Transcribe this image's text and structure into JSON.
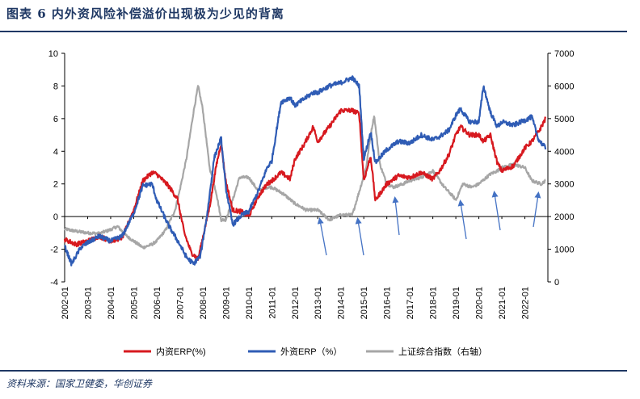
{
  "title": "图表 6   内外资风险补偿溢价出现极为少见的背离",
  "source": "资料来源：国家卫健委，华创证券",
  "chart_data": {
    "type": "line",
    "x_ticks": [
      "2002-01",
      "2003-01",
      "2004-01",
      "2005-01",
      "2006-01",
      "2007-01",
      "2008-01",
      "2009-01",
      "2010-01",
      "2011-01",
      "2012-01",
      "2013-01",
      "2014-01",
      "2015-01",
      "2016-01",
      "2017-01",
      "2018-01",
      "2019-01",
      "2020-01",
      "2021-01",
      "2022-01"
    ],
    "ylim_left": [
      -4,
      10
    ],
    "yticks_left": [
      "-4",
      "-2",
      "0",
      "2",
      "4",
      "6",
      "8",
      "10"
    ],
    "ylim_right": [
      0,
      7000
    ],
    "yticks_right": [
      "0",
      "1000",
      "2000",
      "3000",
      "4000",
      "5000",
      "6000",
      "7000"
    ],
    "series": [
      {
        "name": "内资ERP(%)",
        "axis": "left",
        "color": "#d7191f",
        "x": [
          2002.0,
          2002.5,
          2003.0,
          2003.5,
          2004.0,
          2004.5,
          2005.0,
          2005.4,
          2005.8,
          2006.0,
          2006.5,
          2006.9,
          2007.2,
          2007.5,
          2007.8,
          2008.0,
          2008.3,
          2008.6,
          2008.8,
          2009.0,
          2009.3,
          2009.7,
          2010.0,
          2010.4,
          2010.8,
          2011.0,
          2011.4,
          2011.8,
          2012.0,
          2012.4,
          2012.8,
          2013.0,
          2013.5,
          2014.0,
          2014.5,
          2014.8,
          2015.0,
          2015.3,
          2015.5,
          2016.0,
          2016.5,
          2017.0,
          2017.5,
          2018.0,
          2018.3,
          2018.7,
          2019.0,
          2019.2,
          2019.6,
          2020.0,
          2020.2,
          2020.5,
          2020.8,
          2021.0,
          2021.5,
          2022.0,
          2022.3,
          2022.6,
          2022.9
        ],
        "values": [
          -1.4,
          -1.7,
          -1.5,
          -1.2,
          -1.5,
          -1.3,
          0.4,
          2.2,
          2.7,
          2.6,
          1.9,
          1.1,
          -1.0,
          -2.2,
          -2.6,
          -1.3,
          0.6,
          3.2,
          4.5,
          2.2,
          0.4,
          0.3,
          0.0,
          1.2,
          2.0,
          2.2,
          2.7,
          2.3,
          3.5,
          4.4,
          5.5,
          4.6,
          5.5,
          6.5,
          6.5,
          6.3,
          2.2,
          3.7,
          1.0,
          2.0,
          2.5,
          2.4,
          2.7,
          2.3,
          2.8,
          3.8,
          5.0,
          5.5,
          5.0,
          5.0,
          4.6,
          5.0,
          3.3,
          2.8,
          3.1,
          4.2,
          4.6,
          5.2,
          6.0
        ]
      },
      {
        "name": "外资ERP（%）",
        "axis": "left",
        "color": "#2f5cb5",
        "x": [
          2002.0,
          2002.3,
          2002.7,
          2003.0,
          2003.5,
          2004.0,
          2004.5,
          2005.0,
          2005.4,
          2005.8,
          2006.0,
          2006.5,
          2007.0,
          2007.3,
          2007.6,
          2007.9,
          2008.2,
          2008.5,
          2008.8,
          2009.0,
          2009.3,
          2009.7,
          2010.0,
          2010.4,
          2010.8,
          2011.0,
          2011.4,
          2011.8,
          2012.0,
          2012.4,
          2012.8,
          2013.0,
          2013.5,
          2014.0,
          2014.5,
          2014.8,
          2015.0,
          2015.3,
          2015.5,
          2016.0,
          2016.5,
          2017.0,
          2017.5,
          2018.0,
          2018.3,
          2018.7,
          2019.0,
          2019.2,
          2019.6,
          2020.0,
          2020.2,
          2020.5,
          2020.8,
          2021.0,
          2021.5,
          2022.0,
          2022.3,
          2022.6,
          2022.9
        ],
        "values": [
          -1.8,
          -2.9,
          -1.9,
          -1.6,
          -1.2,
          -1.5,
          -1.2,
          0.2,
          1.9,
          2.0,
          1.0,
          -0.5,
          -1.7,
          -2.5,
          -2.9,
          -2.4,
          0.2,
          3.6,
          4.8,
          1.8,
          -0.5,
          0.1,
          0.3,
          1.5,
          3.0,
          3.4,
          7.0,
          7.3,
          6.8,
          7.2,
          7.6,
          7.6,
          8.0,
          8.2,
          8.5,
          8.0,
          3.5,
          5.2,
          3.3,
          4.1,
          4.6,
          4.5,
          5.0,
          4.7,
          4.9,
          5.3,
          6.2,
          6.6,
          5.8,
          5.8,
          8.0,
          6.4,
          5.5,
          5.8,
          5.6,
          5.9,
          6.1,
          4.7,
          4.2
        ]
      },
      {
        "name": "上证综合指数（右轴）",
        "axis": "right",
        "color": "#a6a6a6",
        "x": [
          2002.0,
          2002.5,
          2003.0,
          2003.5,
          2004.0,
          2004.3,
          2004.7,
          2005.0,
          2005.4,
          2005.8,
          2006.0,
          2006.4,
          2006.8,
          2007.0,
          2007.3,
          2007.6,
          2007.8,
          2008.0,
          2008.3,
          2008.6,
          2008.8,
          2009.0,
          2009.3,
          2009.6,
          2010.0,
          2010.4,
          2010.8,
          2011.0,
          2011.5,
          2012.0,
          2012.5,
          2013.0,
          2013.5,
          2014.0,
          2014.5,
          2014.9,
          2015.1,
          2015.3,
          2015.45,
          2015.7,
          2016.0,
          2016.3,
          2016.7,
          2017.0,
          2017.5,
          2018.0,
          2018.5,
          2018.9,
          2019.0,
          2019.3,
          2019.7,
          2020.0,
          2020.5,
          2020.8,
          2021.0,
          2021.5,
          2022.0,
          2022.3,
          2022.7,
          2022.9
        ],
        "values": [
          1620,
          1550,
          1500,
          1480,
          1600,
          1700,
          1400,
          1250,
          1050,
          1150,
          1250,
          1600,
          2200,
          2800,
          3800,
          5200,
          6000,
          5300,
          3500,
          2700,
          1900,
          1900,
          2500,
          3200,
          3200,
          2800,
          2900,
          2900,
          2700,
          2400,
          2200,
          2200,
          1900,
          2050,
          2050,
          3000,
          3500,
          4500,
          5100,
          3600,
          3000,
          2900,
          3000,
          3100,
          3200,
          3400,
          2900,
          2600,
          2500,
          3000,
          2900,
          3000,
          3300,
          3400,
          3500,
          3600,
          3500,
          3100,
          3000,
          3100
        ]
      }
    ],
    "annotations": "blue arrows point to index lows near 2013, 2014, 2016, 2019, 2020, 2022"
  }
}
